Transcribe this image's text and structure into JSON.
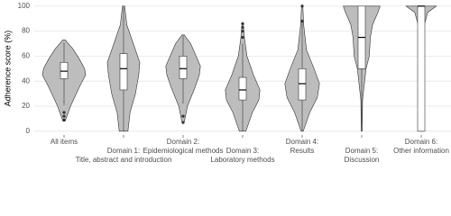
{
  "chart_data": {
    "type": "violin",
    "y_label": "Adherence score (%)",
    "categories": [
      "All items",
      "Domain 1:\nTitle, abstract and introduction",
      "Domain 2:\nEpidemiological methods",
      "Domain 3:\nLaboratory methods",
      "Domain 4:\nResults",
      "Domain 5:\nDiscussion",
      "Domain 6:\nOther information"
    ],
    "ylim": [
      -3,
      102
    ],
    "yticks": [
      0,
      20,
      40,
      60,
      80,
      100
    ],
    "grid": true,
    "color": "#bdbdbd",
    "violins": [
      {
        "y": [
          8,
          20,
          35,
          45,
          50,
          58,
          66,
          73
        ],
        "width": [
          0.05,
          0.3,
          0.7,
          1.0,
          0.95,
          0.7,
          0.4,
          0.05
        ]
      },
      {
        "y": [
          0,
          15,
          30,
          45,
          55,
          70,
          85,
          100
        ],
        "width": [
          0.2,
          0.3,
          0.55,
          0.7,
          0.75,
          0.45,
          0.15,
          0.05
        ]
      },
      {
        "y": [
          7,
          20,
          35,
          45,
          52,
          60,
          70,
          77
        ],
        "width": [
          0.05,
          0.2,
          0.55,
          0.75,
          0.8,
          0.6,
          0.35,
          0.05
        ]
      },
      {
        "y": [
          0,
          15,
          25,
          33,
          45,
          60,
          75,
          86
        ],
        "width": [
          0.15,
          0.45,
          0.75,
          0.8,
          0.5,
          0.2,
          0.08,
          0.03
        ]
      },
      {
        "y": [
          0,
          15,
          27,
          38,
          50,
          65,
          85,
          100
        ],
        "width": [
          0.05,
          0.35,
          0.7,
          0.8,
          0.55,
          0.2,
          0.07,
          0.03
        ]
      },
      {
        "y": [
          0,
          25,
          50,
          60,
          75,
          85,
          95,
          100
        ],
        "width": [
          0.02,
          0.04,
          0.2,
          0.35,
          0.4,
          0.5,
          0.75,
          0.85
        ]
      },
      {
        "y": [
          0,
          20,
          50,
          80,
          95,
          100
        ],
        "width": [
          0.1,
          0.04,
          0.04,
          0.06,
          0.3,
          0.7
        ]
      }
    ],
    "boxes": [
      {
        "lower": 21,
        "q1": 42,
        "median": 48,
        "q3": 55,
        "upper": 71,
        "outliers": [
          9,
          12,
          15
        ]
      },
      {
        "lower": 0,
        "q1": 33,
        "median": 50,
        "q3": 62,
        "upper": 100,
        "outliers": []
      },
      {
        "lower": 22,
        "q1": 42,
        "median": 50,
        "q3": 60,
        "upper": 77,
        "outliers": [
          7,
          12
        ]
      },
      {
        "lower": 0,
        "q1": 25,
        "median": 33,
        "q3": 43,
        "upper": 70,
        "outliers": [
          75,
          80,
          83,
          86
        ]
      },
      {
        "lower": 0,
        "q1": 25,
        "median": 38,
        "q3": 50,
        "upper": 87,
        "outliers": [
          88,
          100
        ]
      },
      {
        "lower": 0,
        "q1": 50,
        "median": 75,
        "q3": 100,
        "upper": 100,
        "outliers": []
      },
      {
        "lower": 0,
        "q1": 0,
        "median": 100,
        "q3": 100,
        "upper": 100,
        "outliers": []
      }
    ]
  }
}
